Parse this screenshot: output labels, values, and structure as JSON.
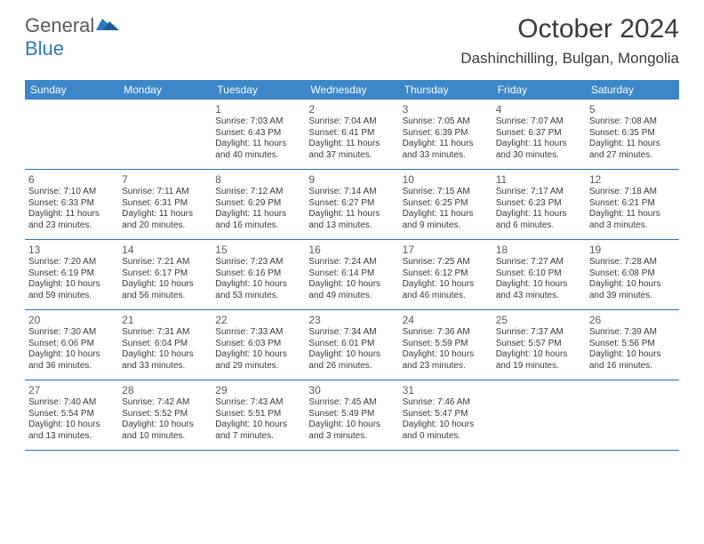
{
  "brand": {
    "word1": "General",
    "word2": "Blue"
  },
  "colors": {
    "headerBg": "#3b87c8",
    "headerText": "#ffffff",
    "rowBorder": "#2f6fa8",
    "bodyText": "#3a3a3a",
    "dayNumText": "#5a5a5a",
    "brandGray": "#5a5a5a",
    "brandBlue": "#2f78bf"
  },
  "title": "October 2024",
  "location": "Dashinchilling, Bulgan, Mongolia",
  "dayNames": [
    "Sunday",
    "Monday",
    "Tuesday",
    "Wednesday",
    "Thursday",
    "Friday",
    "Saturday"
  ],
  "weeks": [
    [
      {
        "n": "",
        "sr": "",
        "ss": "",
        "dl": ""
      },
      {
        "n": "",
        "sr": "",
        "ss": "",
        "dl": ""
      },
      {
        "n": "1",
        "sr": "Sunrise: 7:03 AM",
        "ss": "Sunset: 6:43 PM",
        "dl": "Daylight: 11 hours and 40 minutes."
      },
      {
        "n": "2",
        "sr": "Sunrise: 7:04 AM",
        "ss": "Sunset: 6:41 PM",
        "dl": "Daylight: 11 hours and 37 minutes."
      },
      {
        "n": "3",
        "sr": "Sunrise: 7:05 AM",
        "ss": "Sunset: 6:39 PM",
        "dl": "Daylight: 11 hours and 33 minutes."
      },
      {
        "n": "4",
        "sr": "Sunrise: 7:07 AM",
        "ss": "Sunset: 6:37 PM",
        "dl": "Daylight: 11 hours and 30 minutes."
      },
      {
        "n": "5",
        "sr": "Sunrise: 7:08 AM",
        "ss": "Sunset: 6:35 PM",
        "dl": "Daylight: 11 hours and 27 minutes."
      }
    ],
    [
      {
        "n": "6",
        "sr": "Sunrise: 7:10 AM",
        "ss": "Sunset: 6:33 PM",
        "dl": "Daylight: 11 hours and 23 minutes."
      },
      {
        "n": "7",
        "sr": "Sunrise: 7:11 AM",
        "ss": "Sunset: 6:31 PM",
        "dl": "Daylight: 11 hours and 20 minutes."
      },
      {
        "n": "8",
        "sr": "Sunrise: 7:12 AM",
        "ss": "Sunset: 6:29 PM",
        "dl": "Daylight: 11 hours and 16 minutes."
      },
      {
        "n": "9",
        "sr": "Sunrise: 7:14 AM",
        "ss": "Sunset: 6:27 PM",
        "dl": "Daylight: 11 hours and 13 minutes."
      },
      {
        "n": "10",
        "sr": "Sunrise: 7:15 AM",
        "ss": "Sunset: 6:25 PM",
        "dl": "Daylight: 11 hours and 9 minutes."
      },
      {
        "n": "11",
        "sr": "Sunrise: 7:17 AM",
        "ss": "Sunset: 6:23 PM",
        "dl": "Daylight: 11 hours and 6 minutes."
      },
      {
        "n": "12",
        "sr": "Sunrise: 7:18 AM",
        "ss": "Sunset: 6:21 PM",
        "dl": "Daylight: 11 hours and 3 minutes."
      }
    ],
    [
      {
        "n": "13",
        "sr": "Sunrise: 7:20 AM",
        "ss": "Sunset: 6:19 PM",
        "dl": "Daylight: 10 hours and 59 minutes."
      },
      {
        "n": "14",
        "sr": "Sunrise: 7:21 AM",
        "ss": "Sunset: 6:17 PM",
        "dl": "Daylight: 10 hours and 56 minutes."
      },
      {
        "n": "15",
        "sr": "Sunrise: 7:23 AM",
        "ss": "Sunset: 6:16 PM",
        "dl": "Daylight: 10 hours and 53 minutes."
      },
      {
        "n": "16",
        "sr": "Sunrise: 7:24 AM",
        "ss": "Sunset: 6:14 PM",
        "dl": "Daylight: 10 hours and 49 minutes."
      },
      {
        "n": "17",
        "sr": "Sunrise: 7:25 AM",
        "ss": "Sunset: 6:12 PM",
        "dl": "Daylight: 10 hours and 46 minutes."
      },
      {
        "n": "18",
        "sr": "Sunrise: 7:27 AM",
        "ss": "Sunset: 6:10 PM",
        "dl": "Daylight: 10 hours and 43 minutes."
      },
      {
        "n": "19",
        "sr": "Sunrise: 7:28 AM",
        "ss": "Sunset: 6:08 PM",
        "dl": "Daylight: 10 hours and 39 minutes."
      }
    ],
    [
      {
        "n": "20",
        "sr": "Sunrise: 7:30 AM",
        "ss": "Sunset: 6:06 PM",
        "dl": "Daylight: 10 hours and 36 minutes."
      },
      {
        "n": "21",
        "sr": "Sunrise: 7:31 AM",
        "ss": "Sunset: 6:04 PM",
        "dl": "Daylight: 10 hours and 33 minutes."
      },
      {
        "n": "22",
        "sr": "Sunrise: 7:33 AM",
        "ss": "Sunset: 6:03 PM",
        "dl": "Daylight: 10 hours and 29 minutes."
      },
      {
        "n": "23",
        "sr": "Sunrise: 7:34 AM",
        "ss": "Sunset: 6:01 PM",
        "dl": "Daylight: 10 hours and 26 minutes."
      },
      {
        "n": "24",
        "sr": "Sunrise: 7:36 AM",
        "ss": "Sunset: 5:59 PM",
        "dl": "Daylight: 10 hours and 23 minutes."
      },
      {
        "n": "25",
        "sr": "Sunrise: 7:37 AM",
        "ss": "Sunset: 5:57 PM",
        "dl": "Daylight: 10 hours and 19 minutes."
      },
      {
        "n": "26",
        "sr": "Sunrise: 7:39 AM",
        "ss": "Sunset: 5:56 PM",
        "dl": "Daylight: 10 hours and 16 minutes."
      }
    ],
    [
      {
        "n": "27",
        "sr": "Sunrise: 7:40 AM",
        "ss": "Sunset: 5:54 PM",
        "dl": "Daylight: 10 hours and 13 minutes."
      },
      {
        "n": "28",
        "sr": "Sunrise: 7:42 AM",
        "ss": "Sunset: 5:52 PM",
        "dl": "Daylight: 10 hours and 10 minutes."
      },
      {
        "n": "29",
        "sr": "Sunrise: 7:43 AM",
        "ss": "Sunset: 5:51 PM",
        "dl": "Daylight: 10 hours and 7 minutes."
      },
      {
        "n": "30",
        "sr": "Sunrise: 7:45 AM",
        "ss": "Sunset: 5:49 PM",
        "dl": "Daylight: 10 hours and 3 minutes."
      },
      {
        "n": "31",
        "sr": "Sunrise: 7:46 AM",
        "ss": "Sunset: 5:47 PM",
        "dl": "Daylight: 10 hours and 0 minutes."
      },
      {
        "n": "",
        "sr": "",
        "ss": "",
        "dl": ""
      },
      {
        "n": "",
        "sr": "",
        "ss": "",
        "dl": ""
      }
    ]
  ]
}
